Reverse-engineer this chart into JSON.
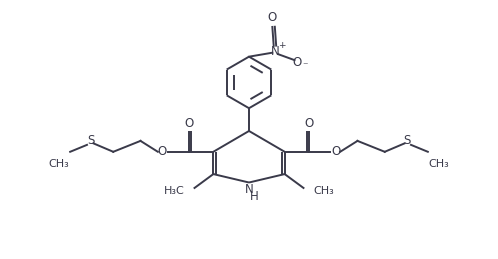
{
  "bg_color": "#ffffff",
  "line_color": "#3a3a4a",
  "line_width": 1.4,
  "font_size": 8.5,
  "figsize": [
    4.98,
    2.59
  ],
  "dpi": 100,
  "xlim": [
    0,
    10
  ],
  "ylim": [
    0,
    5.2
  ]
}
